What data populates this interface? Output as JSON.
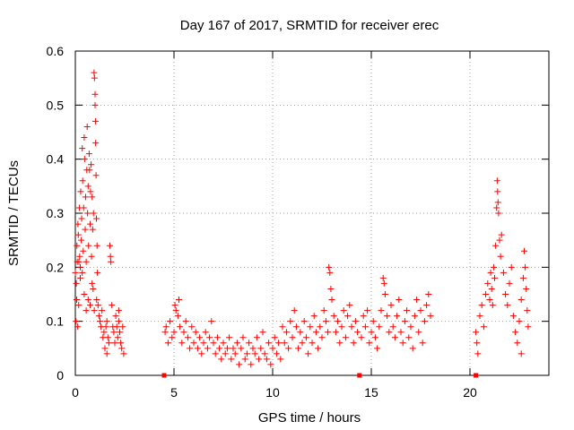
{
  "chart_data": {
    "type": "scatter",
    "title": "Day 167 of 2017, SRMTID for receiver erec",
    "xlabel": "GPS time / hours",
    "ylabel": "SRMTID / TECUs",
    "xlim": [
      0,
      24
    ],
    "ylim": [
      0,
      0.6
    ],
    "xticks": [
      0,
      5,
      10,
      15,
      20
    ],
    "xtick_labels": [
      "0",
      "5",
      "10",
      "15",
      "20"
    ],
    "yticks": [
      0,
      0.1,
      0.2,
      0.3,
      0.4,
      0.5,
      0.6
    ],
    "ytick_labels": [
      "0",
      "0.1",
      "0.2",
      "0.3",
      "0.4",
      "0.5",
      "0.6"
    ],
    "grid": true,
    "marker": "+",
    "color": "#ff0000",
    "zero_markers_x": [
      4.5,
      14.4,
      20.3
    ],
    "series": [
      {
        "name": "SRMTID",
        "points": [
          [
            0.0,
            0.19
          ],
          [
            0.03,
            0.1
          ],
          [
            0.05,
            0.17
          ],
          [
            0.07,
            0.14
          ],
          [
            0.08,
            0.24
          ],
          [
            0.1,
            0.21
          ],
          [
            0.12,
            0.09
          ],
          [
            0.13,
            0.28
          ],
          [
            0.15,
            0.26
          ],
          [
            0.17,
            0.13
          ],
          [
            0.2,
            0.31
          ],
          [
            0.22,
            0.22
          ],
          [
            0.25,
            0.18
          ],
          [
            0.27,
            0.34
          ],
          [
            0.3,
            0.25
          ],
          [
            0.32,
            0.29
          ],
          [
            0.35,
            0.42
          ],
          [
            0.37,
            0.36
          ],
          [
            0.4,
            0.23
          ],
          [
            0.42,
            0.31
          ],
          [
            0.45,
            0.44
          ],
          [
            0.47,
            0.4
          ],
          [
            0.5,
            0.27
          ],
          [
            0.52,
            0.33
          ],
          [
            0.55,
            0.21
          ],
          [
            0.58,
            0.38
          ],
          [
            0.6,
            0.46
          ],
          [
            0.62,
            0.3
          ],
          [
            0.65,
            0.35
          ],
          [
            0.67,
            0.24
          ],
          [
            0.7,
            0.41
          ],
          [
            0.72,
            0.38
          ],
          [
            0.75,
            0.28
          ],
          [
            0.77,
            0.34
          ],
          [
            0.8,
            0.39
          ],
          [
            0.82,
            0.22
          ],
          [
            0.85,
            0.33
          ],
          [
            0.88,
            0.27
          ],
          [
            0.9,
            0.16
          ],
          [
            0.92,
            0.3
          ],
          [
            0.95,
            0.56
          ],
          [
            0.97,
            0.55
          ],
          [
            1.0,
            0.52
          ],
          [
            1.0,
            0.5
          ],
          [
            1.02,
            0.47
          ],
          [
            1.03,
            0.43
          ],
          [
            1.05,
            0.37
          ],
          [
            1.07,
            0.29
          ],
          [
            1.1,
            0.24
          ],
          [
            1.12,
            0.19
          ],
          [
            0.96,
            0.12
          ],
          [
            0.75,
            0.13
          ],
          [
            0.55,
            0.12
          ],
          [
            0.45,
            0.15
          ],
          [
            0.35,
            0.19
          ],
          [
            0.25,
            0.2
          ],
          [
            0.18,
            0.21
          ],
          [
            0.65,
            0.14
          ],
          [
            0.85,
            0.17
          ],
          [
            1.08,
            0.14
          ],
          [
            1.15,
            0.13
          ],
          [
            1.2,
            0.11
          ],
          [
            1.25,
            0.1
          ],
          [
            1.3,
            0.09
          ],
          [
            1.35,
            0.12
          ],
          [
            1.4,
            0.07
          ],
          [
            1.45,
            0.08
          ],
          [
            1.5,
            0.05
          ],
          [
            1.55,
            0.09
          ],
          [
            1.6,
            0.1
          ],
          [
            1.65,
            0.07
          ],
          [
            1.7,
            0.06
          ],
          [
            1.75,
            0.24
          ],
          [
            1.78,
            0.22
          ],
          [
            1.8,
            0.21
          ],
          [
            1.85,
            0.13
          ],
          [
            1.9,
            0.09
          ],
          [
            1.95,
            0.08
          ],
          [
            2.0,
            0.06
          ],
          [
            2.05,
            0.11
          ],
          [
            2.1,
            0.09
          ],
          [
            2.15,
            0.07
          ],
          [
            2.2,
            0.1
          ],
          [
            2.25,
            0.08
          ],
          [
            2.3,
            0.06
          ],
          [
            2.35,
            0.05
          ],
          [
            2.4,
            0.09
          ],
          [
            2.45,
            0.04
          ],
          [
            1.6,
            0.04
          ],
          [
            2.2,
            0.12
          ],
          [
            4.55,
            0.08
          ],
          [
            4.6,
            0.09
          ],
          [
            4.7,
            0.06
          ],
          [
            4.8,
            0.1
          ],
          [
            4.9,
            0.07
          ],
          [
            5.0,
            0.08
          ],
          [
            5.05,
            0.13
          ],
          [
            5.1,
            0.12
          ],
          [
            5.2,
            0.11
          ],
          [
            5.25,
            0.14
          ],
          [
            5.3,
            0.09
          ],
          [
            5.4,
            0.06
          ],
          [
            5.5,
            0.08
          ],
          [
            5.6,
            0.1
          ],
          [
            5.7,
            0.07
          ],
          [
            5.8,
            0.05
          ],
          [
            5.9,
            0.09
          ],
          [
            6.0,
            0.06
          ],
          [
            6.1,
            0.08
          ],
          [
            6.2,
            0.05
          ],
          [
            6.3,
            0.07
          ],
          [
            6.4,
            0.04
          ],
          [
            6.5,
            0.06
          ],
          [
            6.6,
            0.08
          ],
          [
            6.7,
            0.05
          ],
          [
            6.8,
            0.07
          ],
          [
            6.9,
            0.1
          ],
          [
            7.0,
            0.06
          ],
          [
            7.1,
            0.04
          ],
          [
            7.2,
            0.07
          ],
          [
            7.3,
            0.05
          ],
          [
            7.4,
            0.03
          ],
          [
            7.5,
            0.06
          ],
          [
            7.6,
            0.04
          ],
          [
            7.7,
            0.05
          ],
          [
            7.8,
            0.07
          ],
          [
            7.9,
            0.03
          ],
          [
            8.0,
            0.05
          ],
          [
            8.1,
            0.04
          ],
          [
            8.2,
            0.06
          ],
          [
            8.3,
            0.02
          ],
          [
            8.4,
            0.05
          ],
          [
            8.5,
            0.07
          ],
          [
            8.6,
            0.03
          ],
          [
            8.7,
            0.04
          ],
          [
            8.8,
            0.06
          ],
          [
            8.9,
            0.02
          ],
          [
            9.0,
            0.05
          ],
          [
            9.1,
            0.04
          ],
          [
            9.2,
            0.07
          ],
          [
            9.3,
            0.03
          ],
          [
            9.4,
            0.05
          ],
          [
            9.5,
            0.08
          ],
          [
            9.6,
            0.04
          ],
          [
            9.7,
            0.03
          ],
          [
            9.8,
            0.06
          ],
          [
            9.9,
            0.02
          ],
          [
            10.0,
            0.05
          ],
          [
            10.1,
            0.07
          ],
          [
            10.2,
            0.04
          ],
          [
            10.3,
            0.06
          ],
          [
            10.4,
            0.03
          ],
          [
            10.5,
            0.09
          ],
          [
            10.6,
            0.06
          ],
          [
            10.7,
            0.08
          ],
          [
            10.8,
            0.05
          ],
          [
            10.9,
            0.1
          ],
          [
            11.0,
            0.07
          ],
          [
            11.1,
            0.12
          ],
          [
            11.2,
            0.09
          ],
          [
            11.3,
            0.05
          ],
          [
            11.4,
            0.08
          ],
          [
            11.5,
            0.06
          ],
          [
            11.6,
            0.1
          ],
          [
            11.7,
            0.07
          ],
          [
            11.8,
            0.04
          ],
          [
            11.9,
            0.09
          ],
          [
            12.0,
            0.06
          ],
          [
            12.1,
            0.11
          ],
          [
            12.2,
            0.08
          ],
          [
            12.3,
            0.05
          ],
          [
            12.4,
            0.09
          ],
          [
            12.5,
            0.07
          ],
          [
            12.6,
            0.12
          ],
          [
            12.7,
            0.1
          ],
          [
            12.8,
            0.08
          ],
          [
            12.85,
            0.2
          ],
          [
            12.9,
            0.19
          ],
          [
            12.95,
            0.16
          ],
          [
            13.0,
            0.14
          ],
          [
            13.1,
            0.11
          ],
          [
            13.2,
            0.08
          ],
          [
            13.3,
            0.1
          ],
          [
            13.4,
            0.06
          ],
          [
            13.5,
            0.09
          ],
          [
            13.6,
            0.12
          ],
          [
            13.7,
            0.07
          ],
          [
            13.8,
            0.11
          ],
          [
            13.9,
            0.13
          ],
          [
            14.0,
            0.09
          ],
          [
            14.1,
            0.06
          ],
          [
            14.2,
            0.1
          ],
          [
            14.3,
            0.08
          ],
          [
            14.5,
            0.07
          ],
          [
            14.6,
            0.11
          ],
          [
            14.7,
            0.09
          ],
          [
            14.8,
            0.12
          ],
          [
            14.9,
            0.06
          ],
          [
            15.0,
            0.08
          ],
          [
            15.1,
            0.1
          ],
          [
            15.2,
            0.07
          ],
          [
            15.3,
            0.05
          ],
          [
            15.4,
            0.09
          ],
          [
            15.5,
            0.12
          ],
          [
            15.6,
            0.18
          ],
          [
            15.65,
            0.17
          ],
          [
            15.7,
            0.15
          ],
          [
            15.8,
            0.11
          ],
          [
            15.9,
            0.08
          ],
          [
            16.0,
            0.13
          ],
          [
            16.1,
            0.09
          ],
          [
            16.2,
            0.07
          ],
          [
            16.3,
            0.11
          ],
          [
            16.4,
            0.14
          ],
          [
            16.5,
            0.08
          ],
          [
            16.6,
            0.06
          ],
          [
            16.7,
            0.1
          ],
          [
            16.8,
            0.12
          ],
          [
            16.9,
            0.07
          ],
          [
            17.0,
            0.09
          ],
          [
            17.1,
            0.05
          ],
          [
            17.2,
            0.11
          ],
          [
            17.3,
            0.14
          ],
          [
            17.4,
            0.08
          ],
          [
            17.5,
            0.12
          ],
          [
            17.6,
            0.06
          ],
          [
            17.7,
            0.1
          ],
          [
            17.8,
            0.13
          ],
          [
            17.9,
            0.15
          ],
          [
            18.0,
            0.11
          ],
          [
            20.3,
            0.08
          ],
          [
            20.35,
            0.06
          ],
          [
            20.4,
            0.04
          ],
          [
            20.5,
            0.11
          ],
          [
            20.6,
            0.13
          ],
          [
            20.7,
            0.09
          ],
          [
            20.8,
            0.15
          ],
          [
            20.9,
            0.17
          ],
          [
            21.0,
            0.14
          ],
          [
            21.05,
            0.19
          ],
          [
            21.1,
            0.16
          ],
          [
            21.15,
            0.13
          ],
          [
            21.2,
            0.2
          ],
          [
            21.25,
            0.18
          ],
          [
            21.3,
            0.24
          ],
          [
            21.35,
            0.31
          ],
          [
            21.38,
            0.36
          ],
          [
            21.4,
            0.34
          ],
          [
            21.42,
            0.32
          ],
          [
            21.45,
            0.3
          ],
          [
            21.5,
            0.25
          ],
          [
            21.55,
            0.22
          ],
          [
            21.6,
            0.26
          ],
          [
            21.7,
            0.19
          ],
          [
            21.8,
            0.15
          ],
          [
            21.9,
            0.13
          ],
          [
            22.0,
            0.17
          ],
          [
            22.1,
            0.2
          ],
          [
            22.2,
            0.11
          ],
          [
            22.3,
            0.08
          ],
          [
            22.4,
            0.06
          ],
          [
            22.5,
            0.1
          ],
          [
            22.6,
            0.14
          ],
          [
            22.7,
            0.18
          ],
          [
            22.75,
            0.23
          ],
          [
            22.8,
            0.2
          ],
          [
            22.85,
            0.16
          ],
          [
            22.9,
            0.12
          ],
          [
            22.95,
            0.09
          ],
          [
            22.6,
            0.04
          ]
        ]
      }
    ]
  }
}
